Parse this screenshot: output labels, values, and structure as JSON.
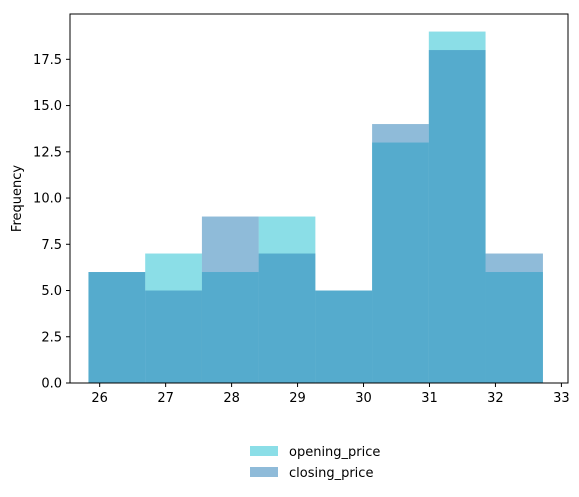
{
  "chart_data": {
    "type": "histogram",
    "title": "",
    "xlabel": "",
    "ylabel": "Frequency",
    "xlim": [
      25.55,
      33.1
    ],
    "ylim": [
      0,
      19.95
    ],
    "xticks": [
      26,
      27,
      28,
      29,
      30,
      31,
      32,
      33
    ],
    "yticks": [
      0.0,
      2.5,
      5.0,
      7.5,
      10.0,
      12.5,
      15.0,
      17.5
    ],
    "ytick_labels": [
      "0.0",
      "2.5",
      "5.0",
      "7.5",
      "10.0",
      "12.5",
      "15.0",
      "17.5"
    ],
    "bin_edges": [
      25.83,
      26.69,
      27.55,
      28.41,
      29.27,
      30.13,
      30.99,
      31.85,
      32.72
    ],
    "series": [
      {
        "name": "opening_price",
        "color": "#17becf",
        "opacity": 0.5,
        "values": [
          6,
          7,
          6,
          9,
          5,
          13,
          19,
          6
        ]
      },
      {
        "name": "closing_price",
        "color": "#1f77b4",
        "opacity": 0.5,
        "values": [
          6,
          5,
          9,
          7,
          5,
          14,
          18,
          7
        ]
      }
    ],
    "grid": false,
    "legend": {
      "placement": "bottom-center"
    }
  }
}
